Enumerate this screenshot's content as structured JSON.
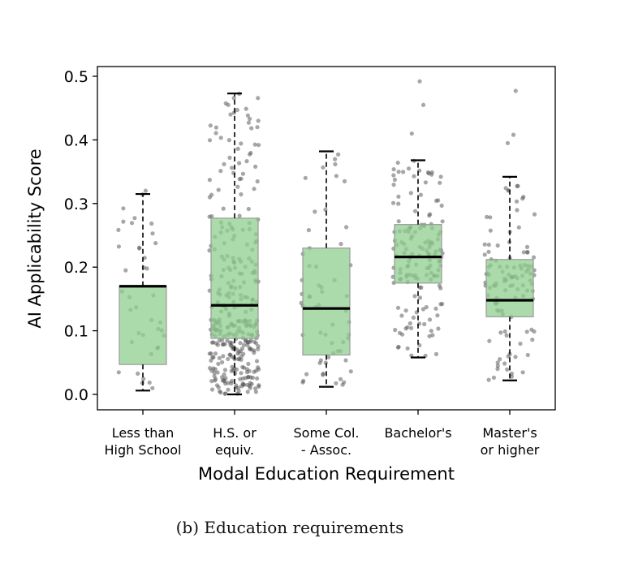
{
  "chart_data": {
    "type": "box",
    "ylabel": "AI Applicability Score",
    "xlabel": "Modal Education Requirement",
    "ylim": [
      -0.025,
      0.52
    ],
    "yticks": [
      "0.0",
      "0.1",
      "0.2",
      "0.3",
      "0.4",
      "0.5"
    ],
    "grid": false,
    "box_color": "#8fcf8f",
    "point_color": "#505050",
    "categories": [
      {
        "label_lines": [
          "Less than",
          "High School"
        ],
        "q1": 0.047,
        "median": 0.17,
        "q3": 0.17,
        "whisker_low": 0.006,
        "whisker_high": 0.315
      },
      {
        "label_lines": [
          "H.S. or",
          "equiv."
        ],
        "q1": 0.088,
        "median": 0.14,
        "q3": 0.277,
        "whisker_low": 0.0,
        "whisker_high": 0.473
      },
      {
        "label_lines": [
          "Some Col.",
          "- Assoc."
        ],
        "q1": 0.062,
        "median": 0.135,
        "q3": 0.23,
        "whisker_low": 0.012,
        "whisker_high": 0.382
      },
      {
        "label_lines": [
          "Bachelor's",
          ""
        ],
        "q1": 0.175,
        "median": 0.216,
        "q3": 0.267,
        "whisker_low": 0.058,
        "whisker_high": 0.368
      },
      {
        "label_lines": [
          "Master's",
          "or higher"
        ],
        "q1": 0.122,
        "median": 0.148,
        "q3": 0.212,
        "whisker_low": 0.022,
        "whisker_high": 0.342
      }
    ]
  },
  "caption": "(b) Education requirements"
}
